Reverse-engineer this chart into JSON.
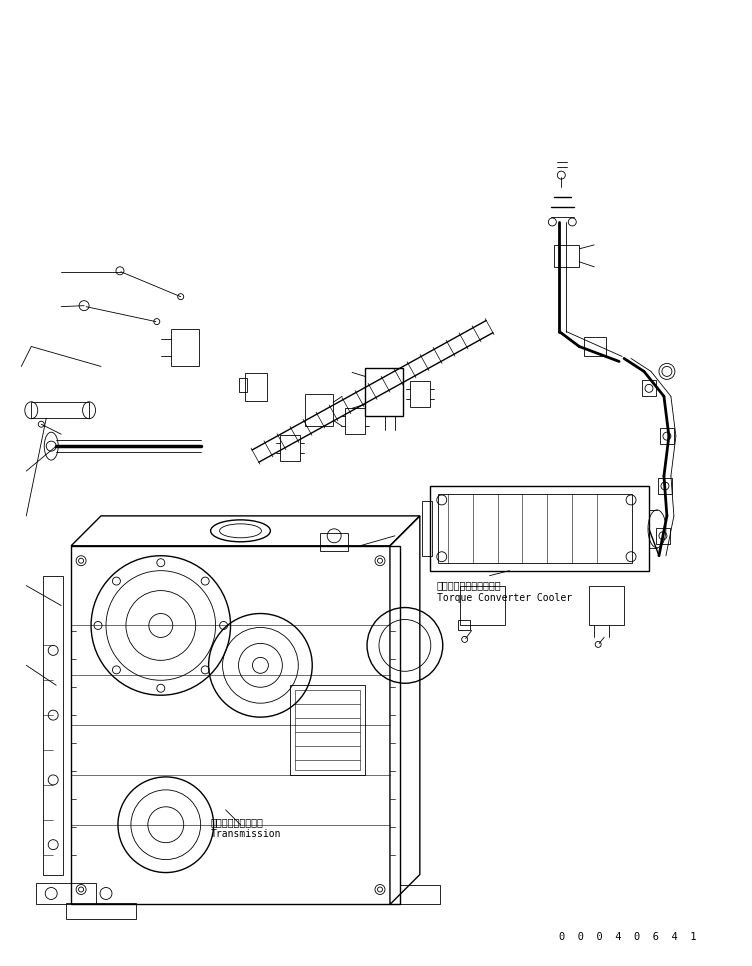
{
  "title": "",
  "background_color": "#ffffff",
  "line_color": "#000000",
  "label_torque_jp": "トルクコンバータクーラ",
  "label_torque_en": "Torque Converter Cooler",
  "label_trans_jp": "トランスミッション",
  "label_trans_en": "Transmission",
  "part_number": "0  0  0  4  0  6  4  1",
  "figsize": [
    7.52,
    9.66
  ],
  "dpi": 100
}
